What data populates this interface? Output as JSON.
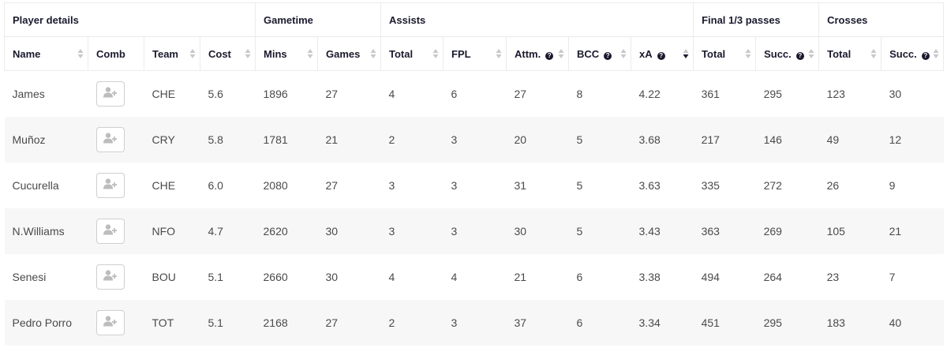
{
  "table": {
    "groups": [
      {
        "label": "Player details",
        "span": 4
      },
      {
        "label": "Gametime",
        "span": 2
      },
      {
        "label": "Assists",
        "span": 5
      },
      {
        "label": "Final 1/3 passes",
        "span": 2
      },
      {
        "label": "Crosses",
        "span": 2
      }
    ],
    "columns": [
      {
        "label": "Name",
        "sortable": true,
        "help": false
      },
      {
        "label": "Comb",
        "sortable": false,
        "help": false
      },
      {
        "label": "Team",
        "sortable": true,
        "help": false
      },
      {
        "label": "Cost",
        "sortable": true,
        "help": false
      },
      {
        "label": "Mins",
        "sortable": true,
        "help": false
      },
      {
        "label": "Games",
        "sortable": true,
        "help": false
      },
      {
        "label": "Total",
        "sortable": true,
        "help": false
      },
      {
        "label": "FPL",
        "sortable": true,
        "help": false
      },
      {
        "label": "Attm.",
        "sortable": true,
        "help": true
      },
      {
        "label": "BCC",
        "sortable": true,
        "help": true
      },
      {
        "label": "xA",
        "sortable": true,
        "help": true,
        "sorted": "desc"
      },
      {
        "label": "Total",
        "sortable": true,
        "help": false
      },
      {
        "label": "Succ.",
        "sortable": true,
        "help": true
      },
      {
        "label": "Total",
        "sortable": true,
        "help": false
      },
      {
        "label": "Succ.",
        "sortable": true,
        "help": true
      }
    ],
    "help_glyph": "?",
    "comb_icon": "add-user-icon",
    "rows": [
      {
        "name": "James",
        "team": "CHE",
        "cost": "5.6",
        "mins": "1896",
        "games": "27",
        "assists_total": "4",
        "fpl": "6",
        "attm": "27",
        "bcc": "8",
        "xa": "4.22",
        "f3_total": "361",
        "f3_succ": "295",
        "cross_total": "123",
        "cross_succ": "30"
      },
      {
        "name": "Muñoz",
        "team": "CRY",
        "cost": "5.8",
        "mins": "1781",
        "games": "21",
        "assists_total": "2",
        "fpl": "3",
        "attm": "20",
        "bcc": "5",
        "xa": "3.68",
        "f3_total": "217",
        "f3_succ": "146",
        "cross_total": "49",
        "cross_succ": "12"
      },
      {
        "name": "Cucurella",
        "team": "CHE",
        "cost": "6.0",
        "mins": "2080",
        "games": "27",
        "assists_total": "3",
        "fpl": "3",
        "attm": "31",
        "bcc": "5",
        "xa": "3.63",
        "f3_total": "335",
        "f3_succ": "272",
        "cross_total": "26",
        "cross_succ": "9"
      },
      {
        "name": "N.Williams",
        "team": "NFO",
        "cost": "4.7",
        "mins": "2620",
        "games": "30",
        "assists_total": "3",
        "fpl": "3",
        "attm": "30",
        "bcc": "5",
        "xa": "3.43",
        "f3_total": "363",
        "f3_succ": "269",
        "cross_total": "105",
        "cross_succ": "21"
      },
      {
        "name": "Senesi",
        "team": "BOU",
        "cost": "5.1",
        "mins": "2660",
        "games": "30",
        "assists_total": "4",
        "fpl": "4",
        "attm": "21",
        "bcc": "6",
        "xa": "3.38",
        "f3_total": "494",
        "f3_succ": "264",
        "cross_total": "23",
        "cross_succ": "7"
      },
      {
        "name": "Pedro Porro",
        "team": "TOT",
        "cost": "5.1",
        "mins": "2168",
        "games": "27",
        "assists_total": "2",
        "fpl": "3",
        "attm": "37",
        "bcc": "6",
        "xa": "3.34",
        "f3_total": "451",
        "f3_succ": "295",
        "cross_total": "183",
        "cross_succ": "40"
      }
    ]
  },
  "colors": {
    "header_text": "#1a1a2e",
    "cell_text": "#4a4a4a",
    "border": "#ebebeb",
    "row_alt": "#f7f7f7",
    "sort_inactive": "#c8c8c8",
    "sort_active": "#1a1a2e"
  }
}
